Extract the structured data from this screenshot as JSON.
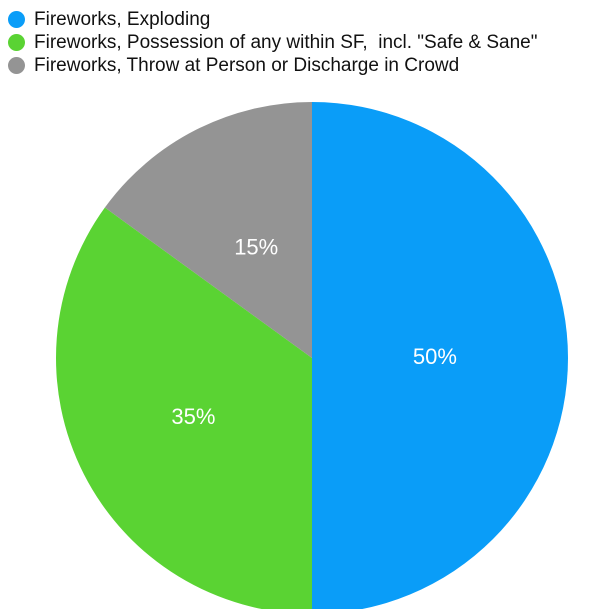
{
  "chart_data": {
    "type": "pie",
    "slices": [
      {
        "name": "Fireworks, Exploding",
        "value": 50,
        "label": "50%",
        "color": "#0a9df8"
      },
      {
        "name": "Fireworks, Possession of any within SF,  incl. \"Safe & Sane\"",
        "value": 35,
        "label": "35%",
        "color": "#5ad333"
      },
      {
        "name": "Fireworks, Throw at Person or Discharge in Crowd",
        "value": 15,
        "label": "15%",
        "color": "#949494"
      }
    ],
    "legend_position": "top-left",
    "start_angle": "12 o'clock",
    "direction": "clockwise"
  }
}
